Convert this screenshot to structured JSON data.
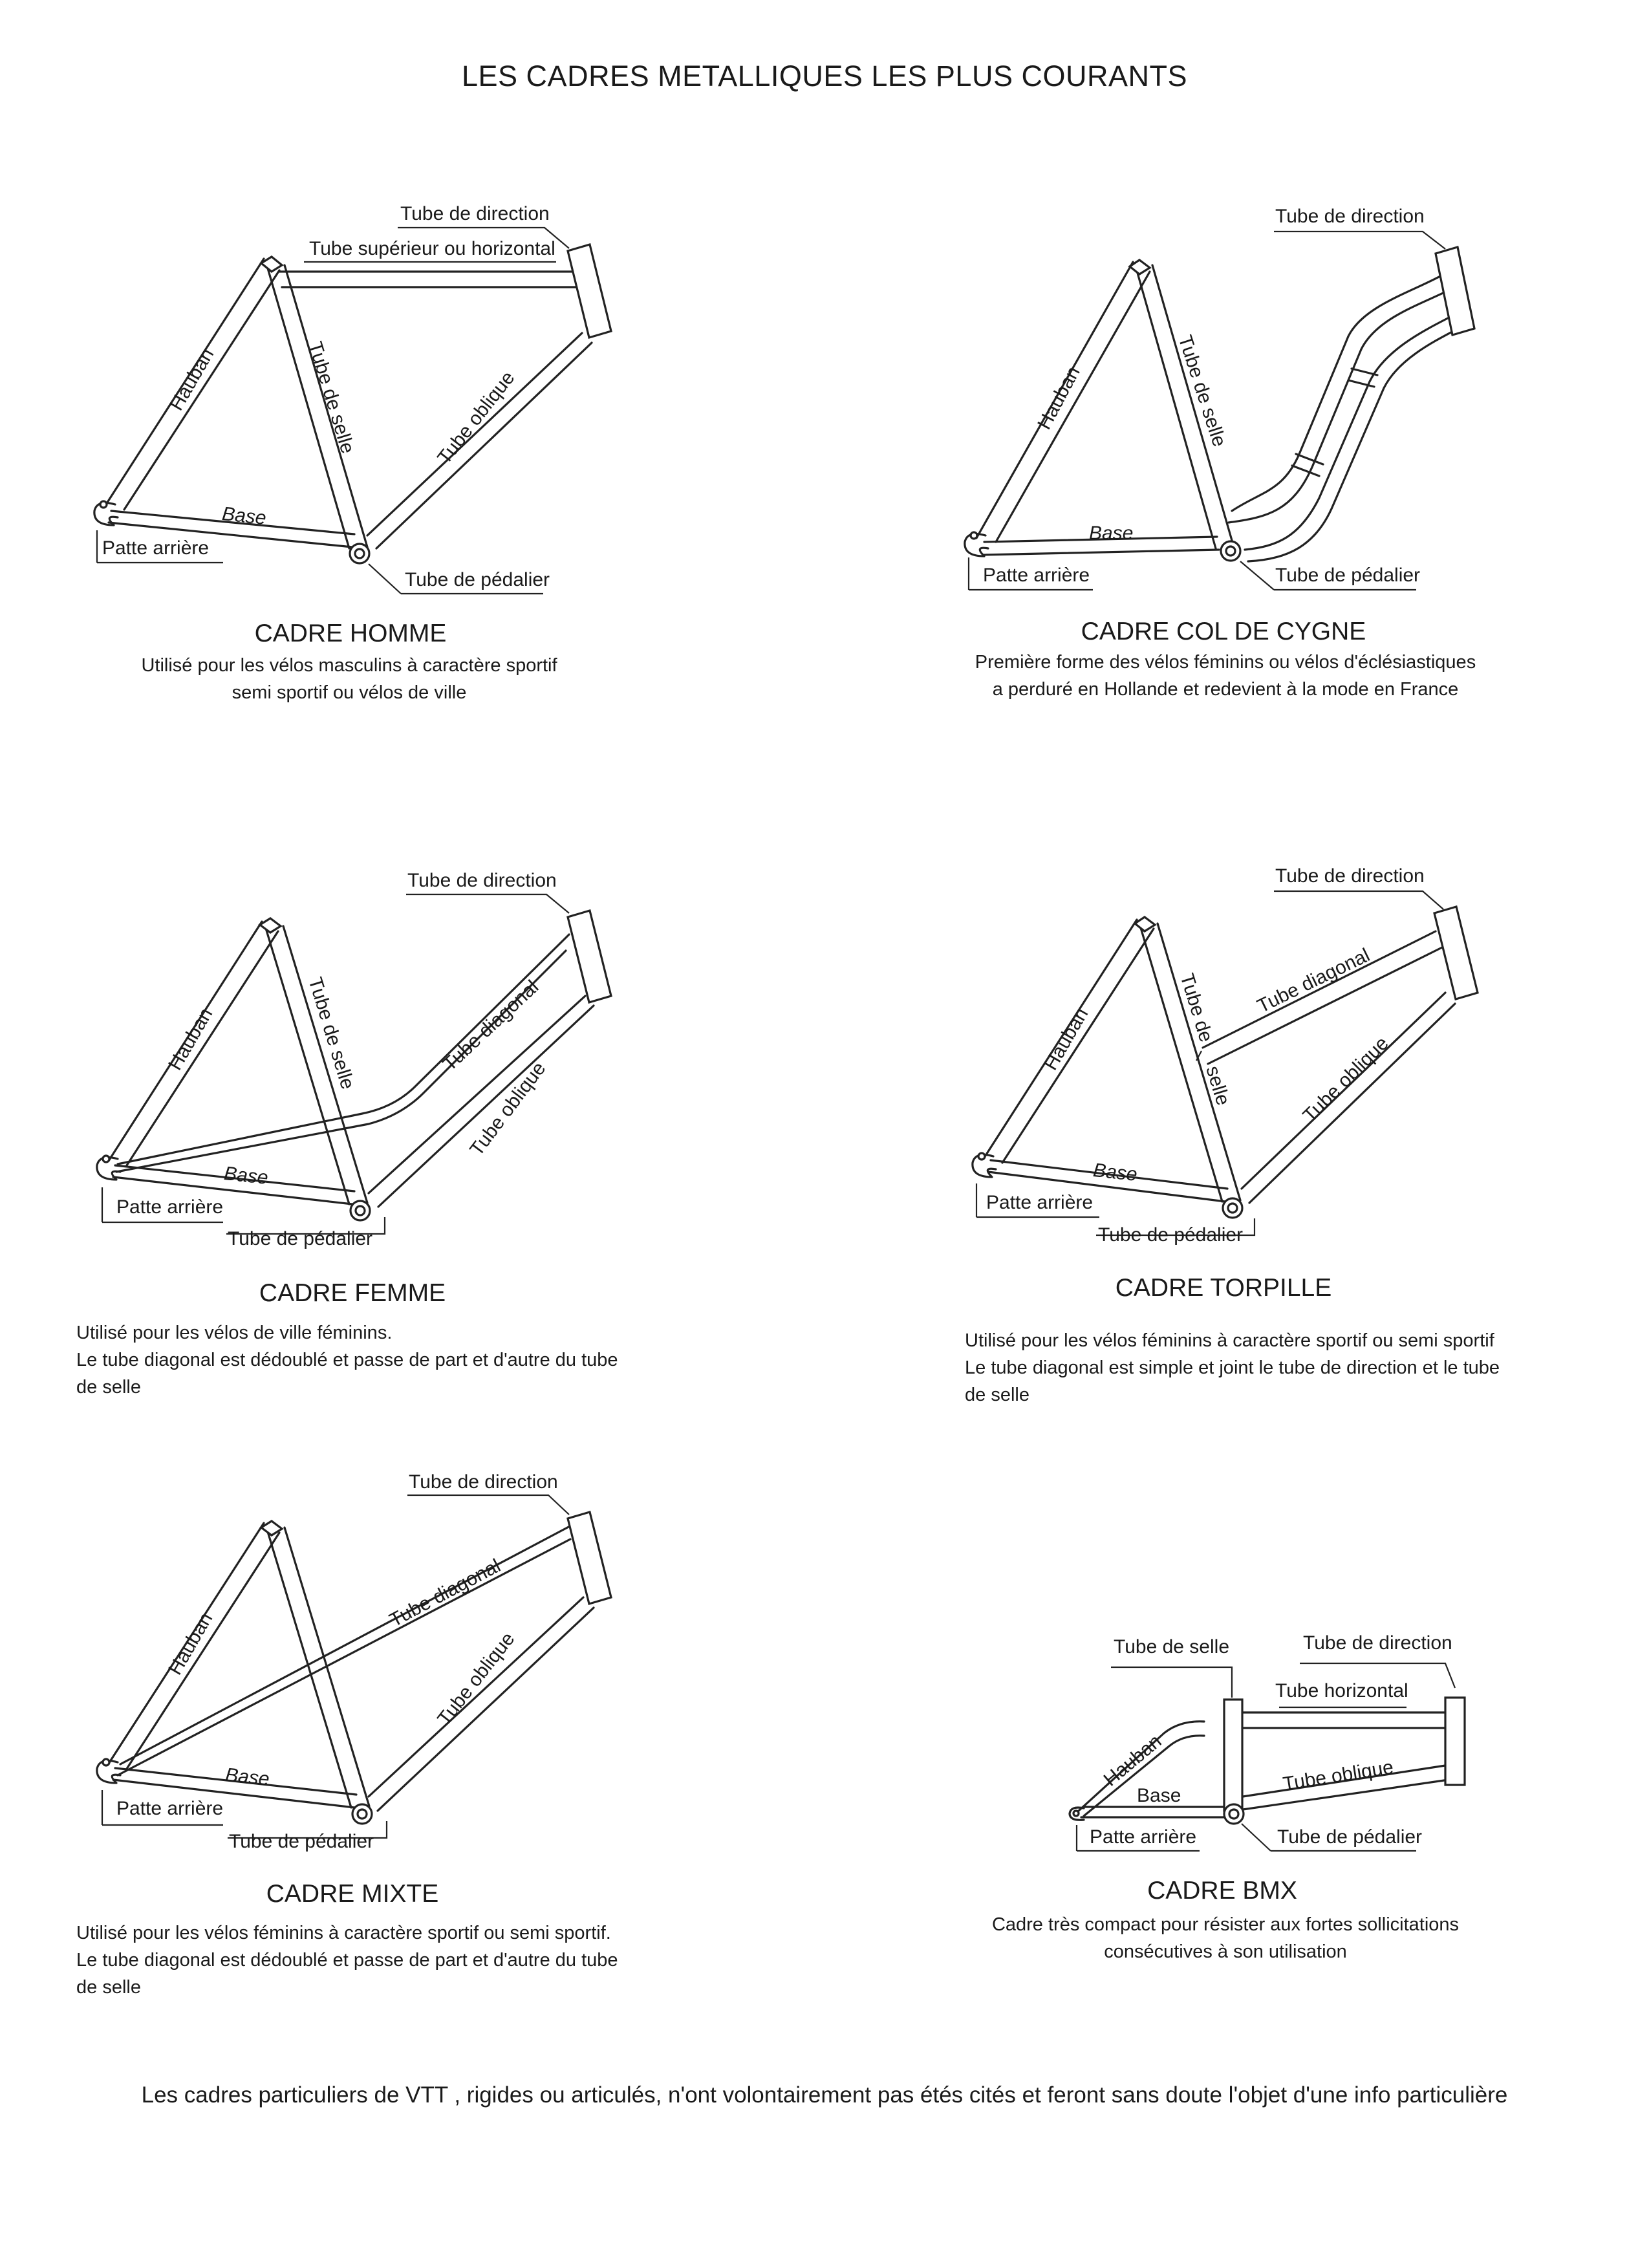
{
  "page_title": "LES CADRES METALLIQUES LES PLUS COURANTS",
  "frames": {
    "homme": {
      "name": "CADRE HOMME",
      "desc": [
        "Utilisé pour les vélos masculins à caractère sportif",
        "semi sportif ou vélos de ville"
      ],
      "labels": {
        "direction": "Tube de direction",
        "superieur": "Tube supérieur ou horizontal",
        "hauban": "Hauban",
        "selle": "Tube de selle",
        "oblique": "Tube oblique",
        "base": "Base",
        "patte": "Patte arrière",
        "pedalier": "Tube de pédalier"
      }
    },
    "cygne": {
      "name": "CADRE COL DE CYGNE",
      "desc": [
        "Première forme des vélos féminins ou vélos d'éclésiastiques",
        "a perduré en Hollande et redevient à la mode en France"
      ],
      "labels": {
        "direction": "Tube de direction",
        "hauban": "Hauban",
        "selle": "Tube de selle",
        "base": "Base",
        "patte": "Patte arrière",
        "pedalier": "Tube de pédalier"
      }
    },
    "femme": {
      "name": "CADRE FEMME",
      "desc": [
        "Utilisé pour les vélos de ville féminins.",
        "Le tube diagonal est dédoublé et passe de part et d'autre du tube",
        "de selle"
      ],
      "labels": {
        "direction": "Tube de direction",
        "hauban": "Hauban",
        "selle": "Tube de selle",
        "diagonal": "Tube diagonal",
        "oblique": "Tube oblique",
        "base": "Base",
        "patte": "Patte arrière",
        "pedalier": "Tube de pédalier"
      }
    },
    "torpille": {
      "name": "CADRE TORPILLE",
      "desc": [
        "Utilisé pour les vélos féminins à caractère sportif ou semi sportif",
        "Le tube diagonal est simple et joint le tube de direction et le tube",
        "de selle"
      ],
      "labels": {
        "direction": "Tube de direction",
        "hauban": "Hauban",
        "selle_a": "Tube de",
        "selle_b": "selle",
        "diagonal": "Tube diagonal",
        "oblique": "Tube oblique",
        "base": "Base",
        "patte": "Patte arrière",
        "pedalier": "Tube de pédalier"
      }
    },
    "mixte": {
      "name": "CADRE MIXTE",
      "desc": [
        "Utilisé pour les vélos féminins à caractère sportif ou semi sportif.",
        "Le tube diagonal est dédoublé et passe de part et d'autre du tube",
        "de selle"
      ],
      "labels": {
        "direction": "Tube de direction",
        "hauban": "Hauban",
        "diagonal": "Tube diagonal",
        "oblique": "Tube oblique",
        "base": "Base",
        "patte": "Patte arrière",
        "pedalier": "Tube de pédalier"
      }
    },
    "bmx": {
      "name": "CADRE BMX",
      "desc": [
        "Cadre très compact pour résister aux fortes sollicitations",
        "consécutives à son utilisation"
      ],
      "labels": {
        "selle": "Tube de selle",
        "direction": "Tube de direction",
        "horizontal": "Tube horizontal",
        "hauban": "Hauban",
        "oblique": "Tube oblique",
        "base": "Base",
        "patte": "Patte arrière",
        "pedalier": "Tube de pédalier"
      }
    }
  },
  "footer": "Les cadres particuliers de VTT , rigides ou articulés, n'ont volontairement pas étés cités et feront sans doute l'objet d'une info particulière"
}
